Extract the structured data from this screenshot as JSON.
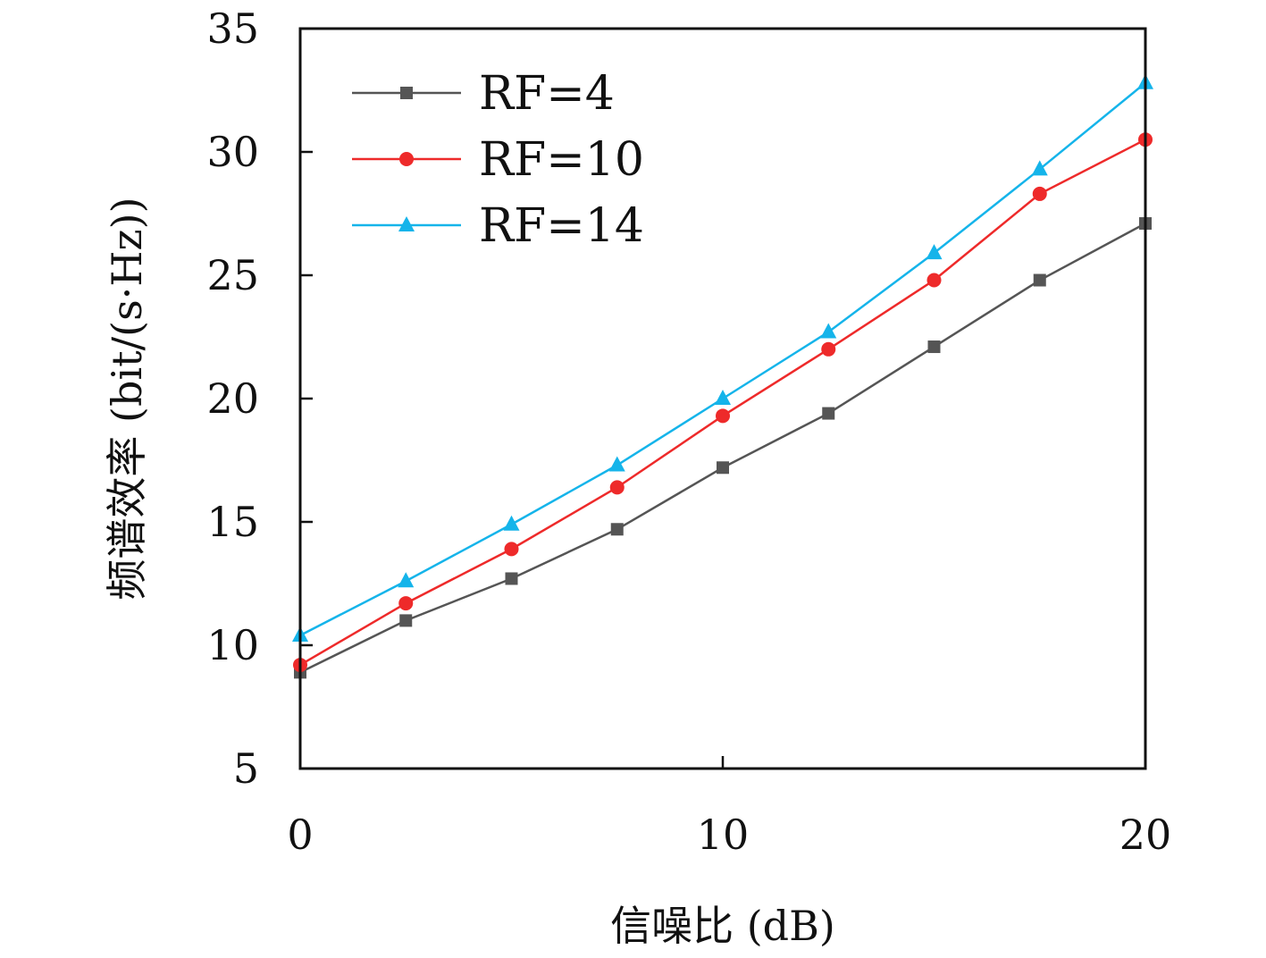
{
  "chart_data": {
    "type": "line",
    "title": "",
    "xlabel": "信噪比 (dB)",
    "ylabel": "频谱效率 (bit/(s·Hz))",
    "xlim": [
      0,
      20
    ],
    "ylim": [
      5,
      35
    ],
    "xticks": [
      0,
      10,
      20
    ],
    "yticks": [
      5,
      10,
      15,
      20,
      25,
      30,
      35
    ],
    "grid": false,
    "legend_position": "top-left",
    "x": [
      0,
      2.5,
      5,
      7.5,
      10,
      12.5,
      15,
      17.5,
      20
    ],
    "series": [
      {
        "name": "RF=4",
        "color": "#555555",
        "marker": "square",
        "values": [
          8.9,
          11.0,
          12.7,
          14.7,
          17.2,
          19.4,
          22.1,
          24.8,
          27.1
        ]
      },
      {
        "name": "RF=10",
        "color": "#ee2a2a",
        "marker": "circle",
        "values": [
          9.2,
          11.7,
          13.9,
          16.4,
          19.3,
          22.0,
          24.8,
          28.3,
          30.5
        ]
      },
      {
        "name": "RF=14",
        "color": "#15b4ea",
        "marker": "triangle",
        "values": [
          10.4,
          12.6,
          14.9,
          17.3,
          20.0,
          22.7,
          25.9,
          29.3,
          32.8
        ]
      }
    ]
  }
}
